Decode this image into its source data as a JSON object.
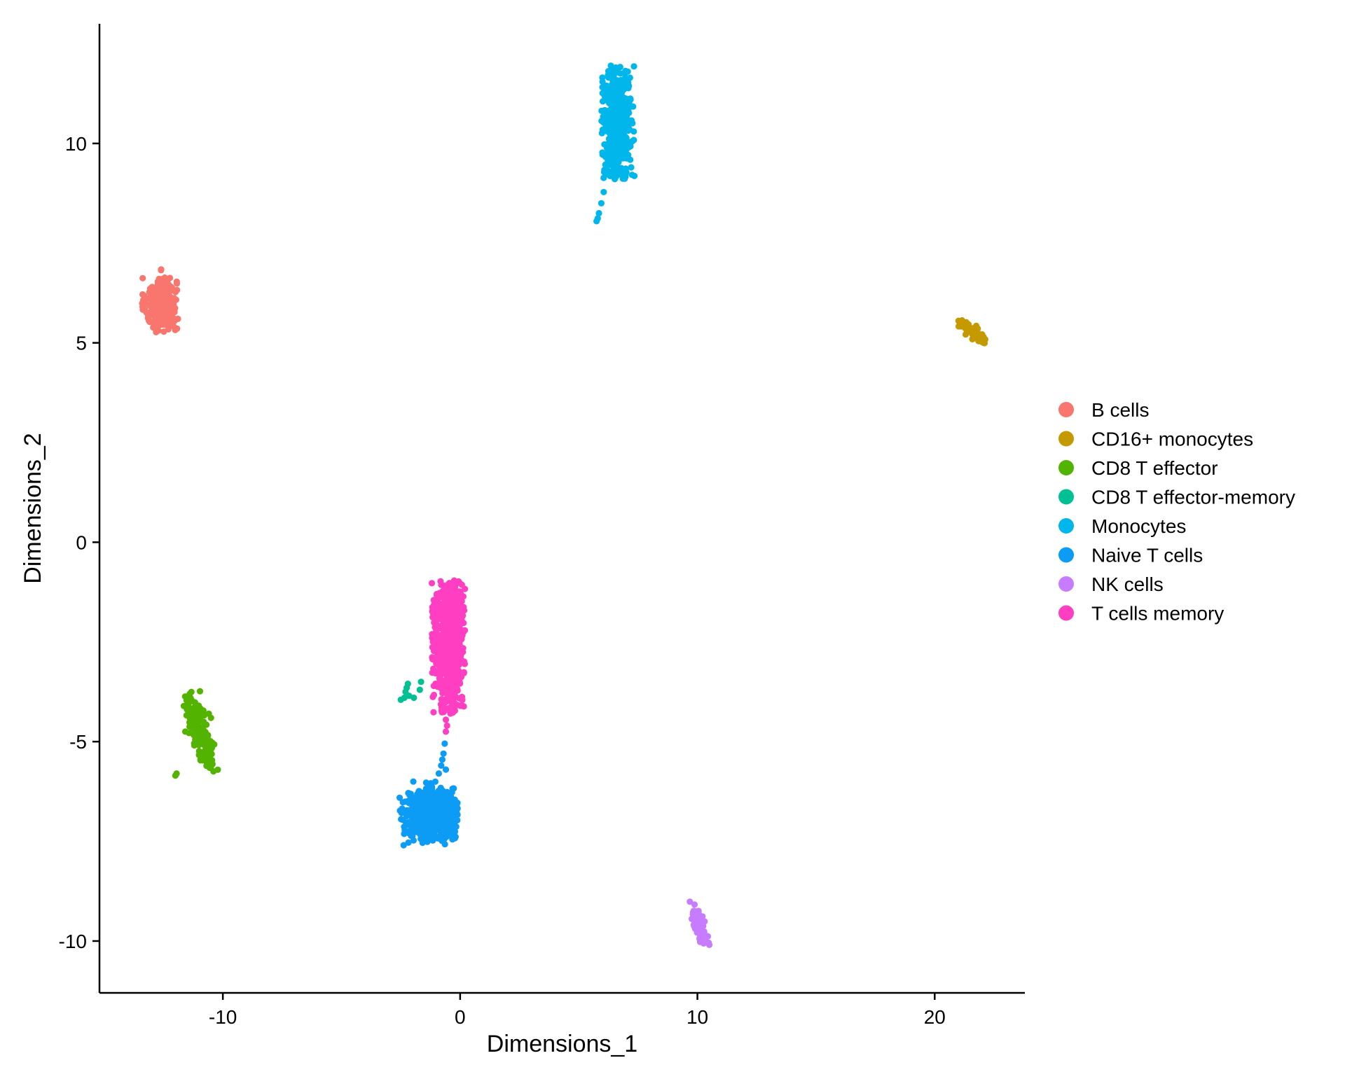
{
  "chart_data": {
    "type": "scatter",
    "title": "",
    "xlabel": "Dimensions_1",
    "ylabel": "Dimensions_2",
    "xlim": [
      -15.2,
      23.8
    ],
    "ylim": [
      -11.3,
      13.0
    ],
    "x_ticks": [
      -10,
      0,
      10,
      20
    ],
    "y_ticks": [
      -10,
      -5,
      0,
      5,
      10
    ],
    "x_tick_labels": [
      "-10",
      "0",
      "10",
      "20"
    ],
    "y_tick_labels": [
      "-10",
      "-5",
      "0",
      "5",
      "10"
    ],
    "grid": false,
    "legend_position": "right",
    "series": [
      {
        "name": "B cells",
        "color": "#F8766D",
        "count": 340,
        "clusters": [
          {
            "cx": -12.6,
            "cy": 5.95,
            "sx": 0.28,
            "sy": 0.3,
            "xmin": -13.4,
            "xmax": -11.8,
            "ymin": 5.25,
            "ymax": 6.85
          }
        ]
      },
      {
        "name": "CD16+ monocytes",
        "color": "#C49A00",
        "count": 60,
        "line": {
          "x0": 21.1,
          "y0": 5.55,
          "x1": 22.1,
          "y1": 5.0,
          "spread": 0.1
        }
      },
      {
        "name": "CD8 T effector",
        "color": "#53B400",
        "count": 150,
        "line": {
          "x0": -11.5,
          "y0": -3.85,
          "x1": -10.5,
          "y1": -5.55,
          "spread": 0.2
        },
        "extra_points": [
          [
            -12.0,
            -5.85
          ],
          [
            -11.95,
            -5.8
          ]
        ]
      },
      {
        "name": "CD8 T effector-memory",
        "color": "#00C094",
        "count": 0,
        "extra_points": [
          [
            -2.5,
            -3.95
          ],
          [
            -2.35,
            -3.9
          ],
          [
            -2.3,
            -3.75
          ],
          [
            -2.25,
            -3.65
          ],
          [
            -2.2,
            -3.55
          ],
          [
            -2.15,
            -3.85
          ],
          [
            -1.95,
            -3.9
          ],
          [
            -1.65,
            -3.5
          ],
          [
            -1.7,
            -3.7
          ]
        ]
      },
      {
        "name": "Monocytes",
        "color": "#00B6EB",
        "count": 470,
        "clusters": [
          {
            "cx": 6.6,
            "cy": 10.45,
            "sx": 0.28,
            "sy": 0.75,
            "xmin": 5.95,
            "xmax": 7.35,
            "ymin": 9.1,
            "ymax": 11.95
          }
        ],
        "extra_points": [
          [
            5.75,
            8.05
          ],
          [
            5.8,
            8.12
          ],
          [
            5.85,
            8.25
          ],
          [
            5.95,
            8.5
          ],
          [
            6.05,
            8.78
          ]
        ]
      },
      {
        "name": "Naive T cells",
        "color": "#0C9CF5",
        "count": 850,
        "clusters": [
          {
            "cx": -1.15,
            "cy": -6.8,
            "sx": 0.5,
            "sy": 0.28,
            "xmin": -2.55,
            "xmax": -0.1,
            "ymin": -7.6,
            "ymax": -6.0
          }
        ],
        "extra_points": [
          [
            -0.65,
            -5.05
          ],
          [
            -0.7,
            -5.3
          ],
          [
            -0.75,
            -5.45
          ],
          [
            -0.8,
            -5.6
          ],
          [
            -0.6,
            -5.7
          ],
          [
            -0.9,
            -5.8
          ]
        ]
      },
      {
        "name": "NK cells",
        "color": "#C77CFF",
        "count": 70,
        "line": {
          "x0": 9.8,
          "y0": -9.15,
          "x1": 10.4,
          "y1": -10.1,
          "spread": 0.12
        }
      },
      {
        "name": "T cells memory",
        "color": "#FF3EC2",
        "count": 700,
        "clusters": [
          {
            "cx": -0.45,
            "cy": -2.35,
            "sx": 0.3,
            "sy": 0.9,
            "xmin": -1.2,
            "xmax": 0.2,
            "ymin": -4.3,
            "ymax": -0.95
          }
        ],
        "extra_points": [
          [
            -0.6,
            -4.45
          ],
          [
            -0.55,
            -4.6
          ],
          [
            -0.6,
            -4.75
          ]
        ]
      }
    ]
  }
}
